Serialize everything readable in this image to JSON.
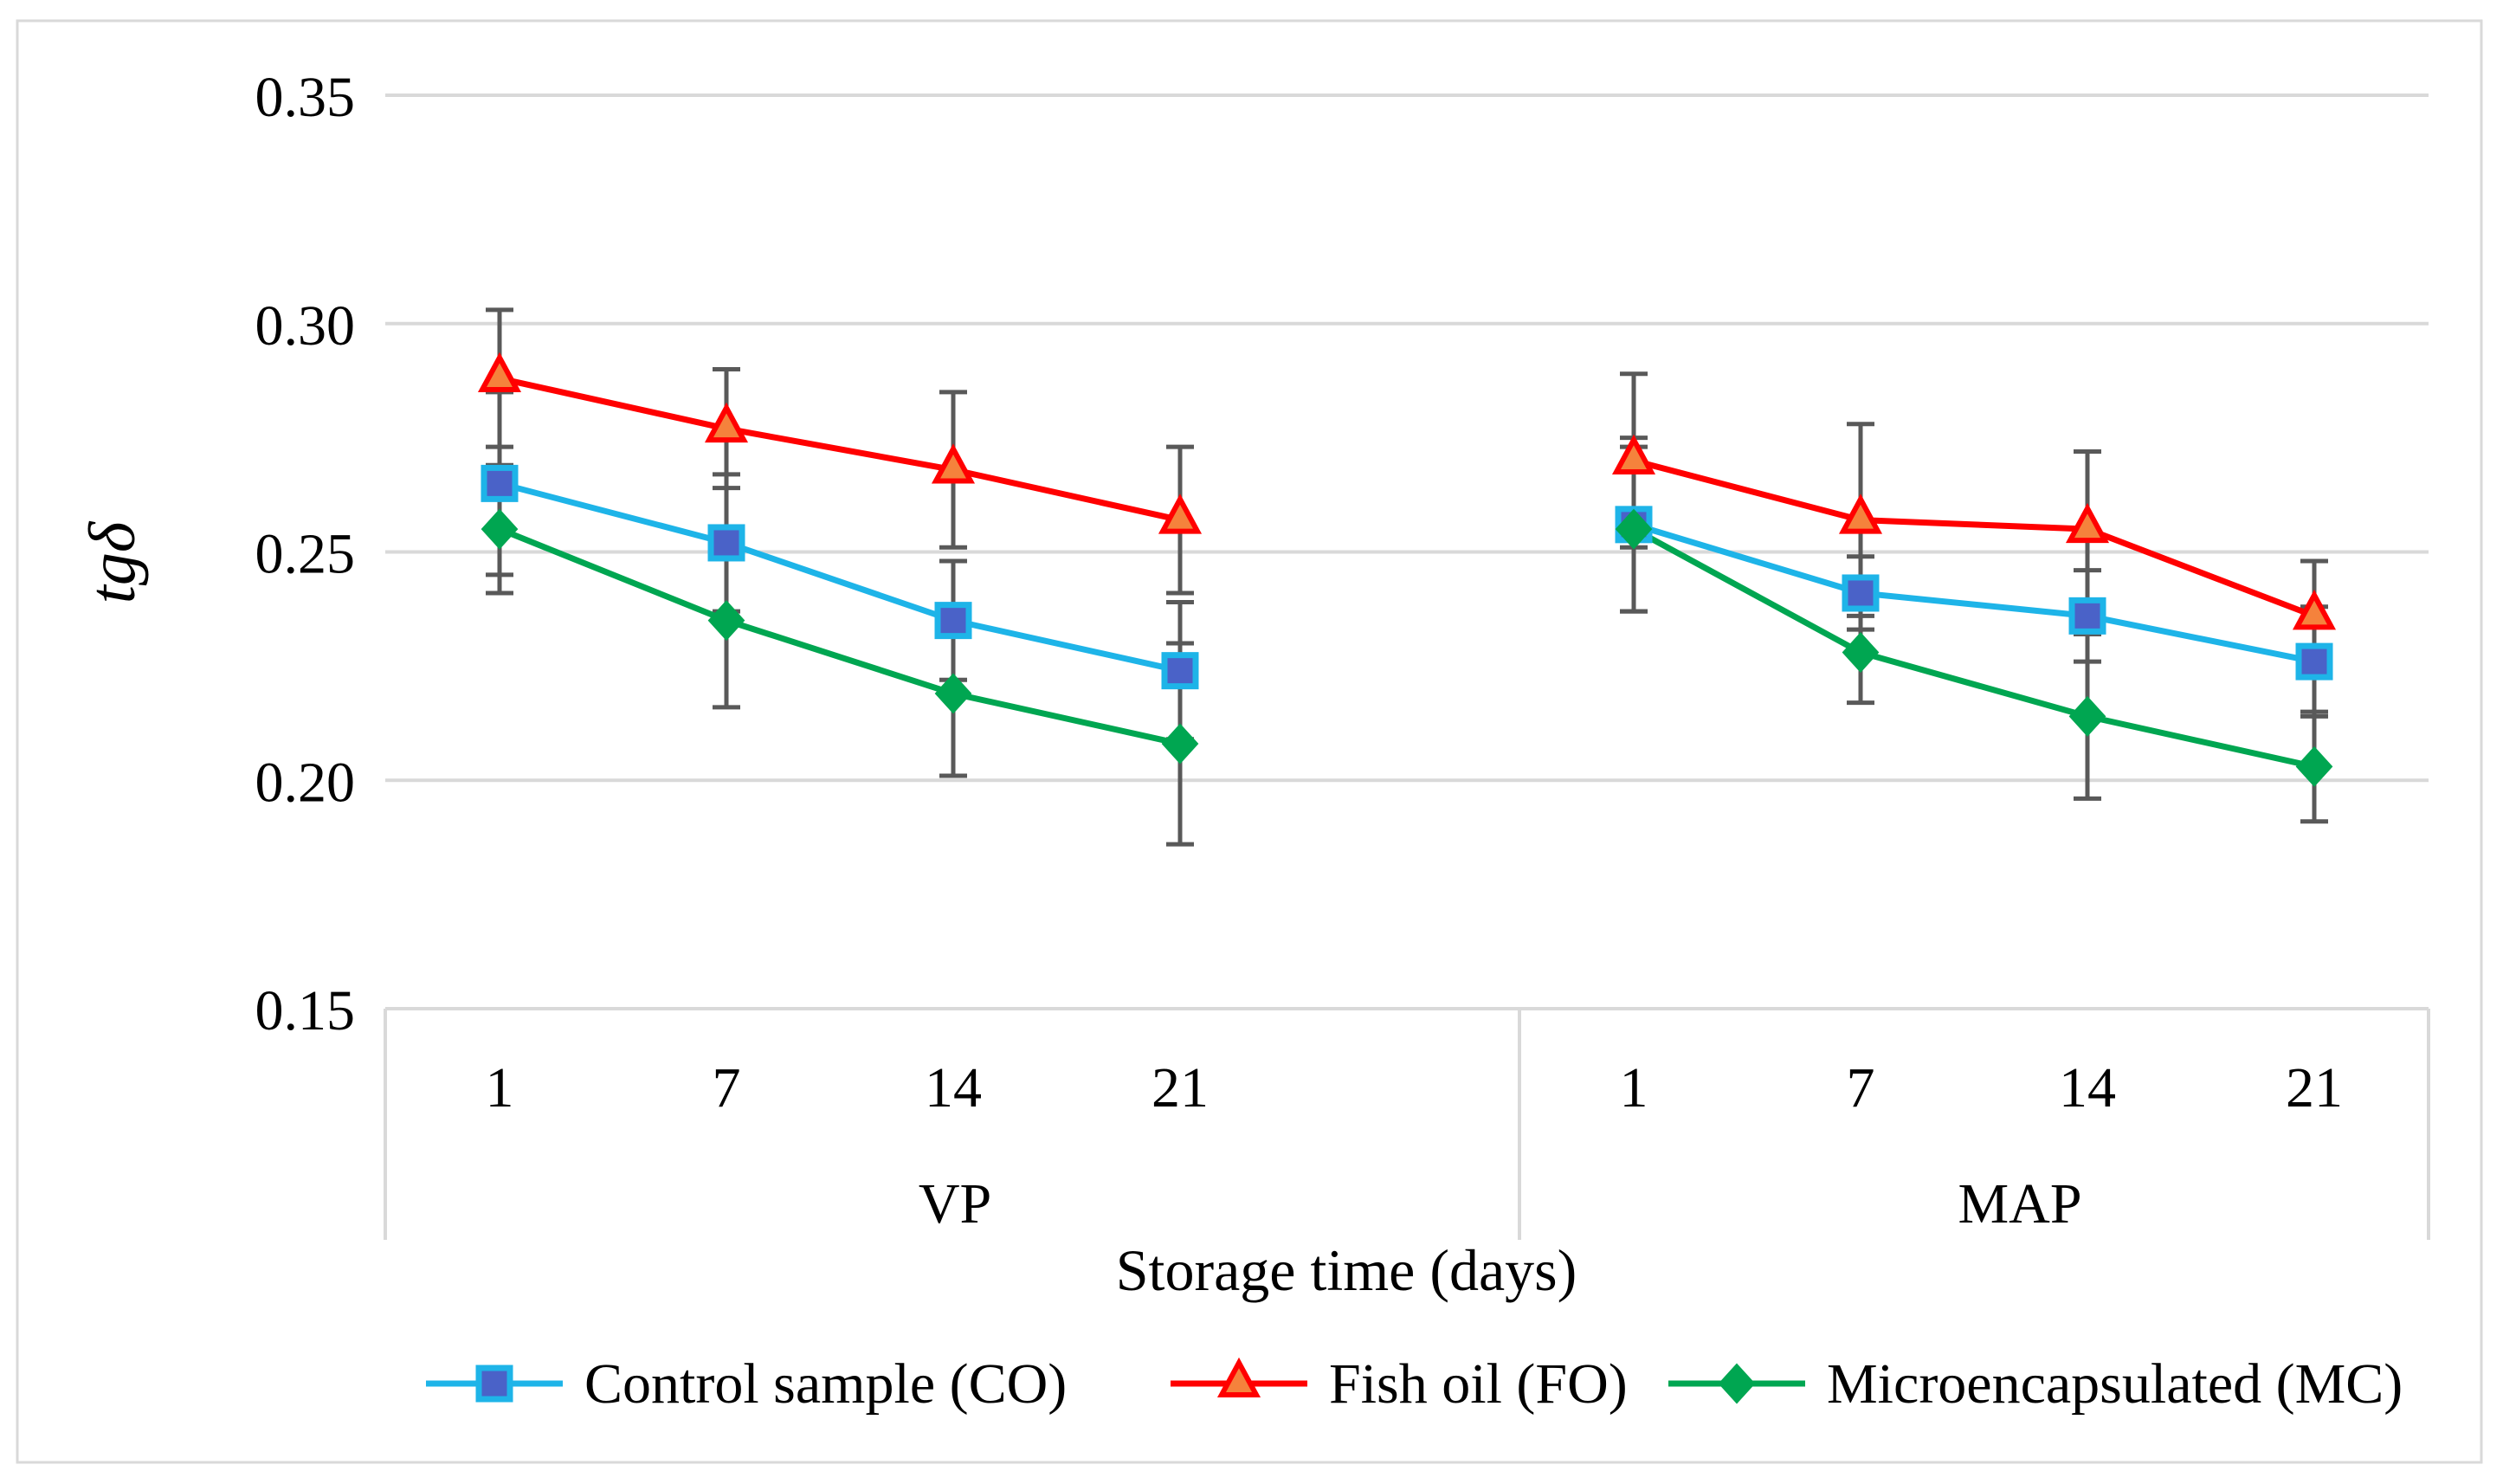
{
  "chart_data": {
    "type": "line",
    "title": "",
    "ylabel": "tgδ",
    "xlabel": "Storage time (days)",
    "ylim": [
      0.15,
      0.35
    ],
    "yticks": [
      "0.35",
      "0.30",
      "0.25",
      "0.20",
      "0.15"
    ],
    "ytick_values": [
      0.35,
      0.3,
      0.25,
      0.2,
      0.15
    ],
    "grid": true,
    "legend_position": "bottom",
    "groups": [
      {
        "label": "VP",
        "categories": [
          "1",
          "7",
          "14",
          "21"
        ]
      },
      {
        "label": "MAP",
        "categories": [
          "1",
          "7",
          "14",
          "21"
        ]
      }
    ],
    "series": [
      {
        "name": "Control sample (CO)",
        "color": "#1EB4E8",
        "marker_fill": "#4A62C8",
        "marker": "square",
        "values": [
          [
            0.265,
            0.252,
            0.235,
            0.224
          ],
          [
            0.256,
            0.241,
            0.236,
            0.226
          ]
        ],
        "errors": [
          [
            0.02,
            0.015,
            0.013,
            0.015
          ],
          [
            0.019,
            0.008,
            0.01,
            0.012
          ]
        ]
      },
      {
        "name": "Fish oil (FO)",
        "color": "#FF0000",
        "marker_fill": "#F5823C",
        "marker": "triangle",
        "values": [
          [
            0.288,
            0.277,
            0.268,
            0.257
          ],
          [
            0.27,
            0.257,
            0.255,
            0.236
          ]
        ],
        "errors": [
          [
            0.015,
            0.013,
            0.017,
            0.016
          ],
          [
            0.019,
            0.021,
            0.017,
            0.012
          ]
        ]
      },
      {
        "name": "Microencapsulated (MC)",
        "color": "#00A651",
        "marker_fill": "#00A651",
        "marker": "diamond",
        "values": [
          [
            0.255,
            0.235,
            0.219,
            0.208
          ],
          [
            0.255,
            0.228,
            0.214,
            0.203
          ]
        ],
        "errors": [
          [
            0.014,
            0.019,
            0.018,
            0.022
          ],
          [
            0.018,
            0.011,
            0.018,
            0.012
          ]
        ]
      }
    ]
  }
}
